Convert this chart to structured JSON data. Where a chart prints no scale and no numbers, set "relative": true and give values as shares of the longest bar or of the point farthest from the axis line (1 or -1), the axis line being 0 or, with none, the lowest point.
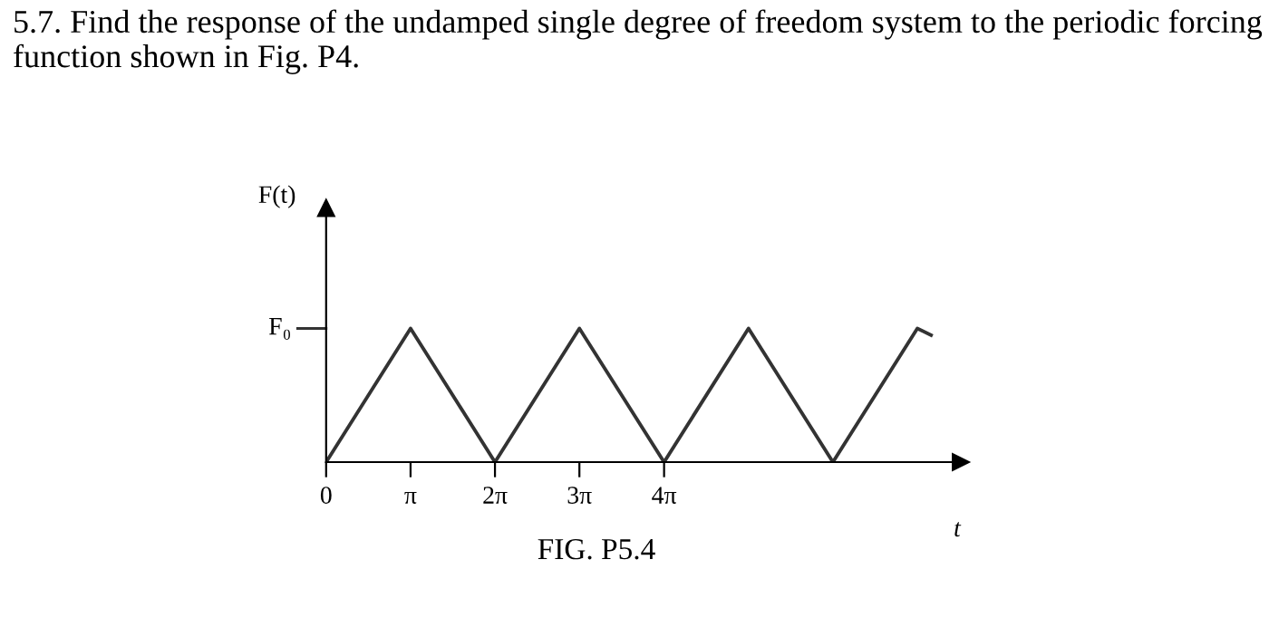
{
  "chart_data": {
    "type": "line",
    "title": "5.7. Find the response of the undamped single degree of freedom system to the periodic forcing function shown in Fig. P4.",
    "xlabel": "t",
    "ylabel": "F(t)",
    "x": [
      0,
      3.14,
      6.28,
      9.42,
      12.57,
      15.71,
      18.85,
      21.99,
      22.5
    ],
    "series": [
      {
        "color": "#333333",
        "values": [
          0,
          1,
          0,
          1,
          0,
          1,
          0,
          1,
          0.95
        ]
      }
    ],
    "relative": true,
    "xlim": [
      0,
      23.6
    ],
    "xticks": [
      0,
      {
        "value": 3.14,
        "label": "π"
      },
      {
        "value": 6.28,
        "label": "2π"
      },
      {
        "value": 9.42,
        "label": "3π"
      },
      {
        "value": 12.57,
        "label": "4π"
      }
    ],
    "grid": false,
    "marker": "none",
    "line_style": "solid",
    "annotations": [
      "F₀",
      "FIG. P5.4"
    ]
  }
}
